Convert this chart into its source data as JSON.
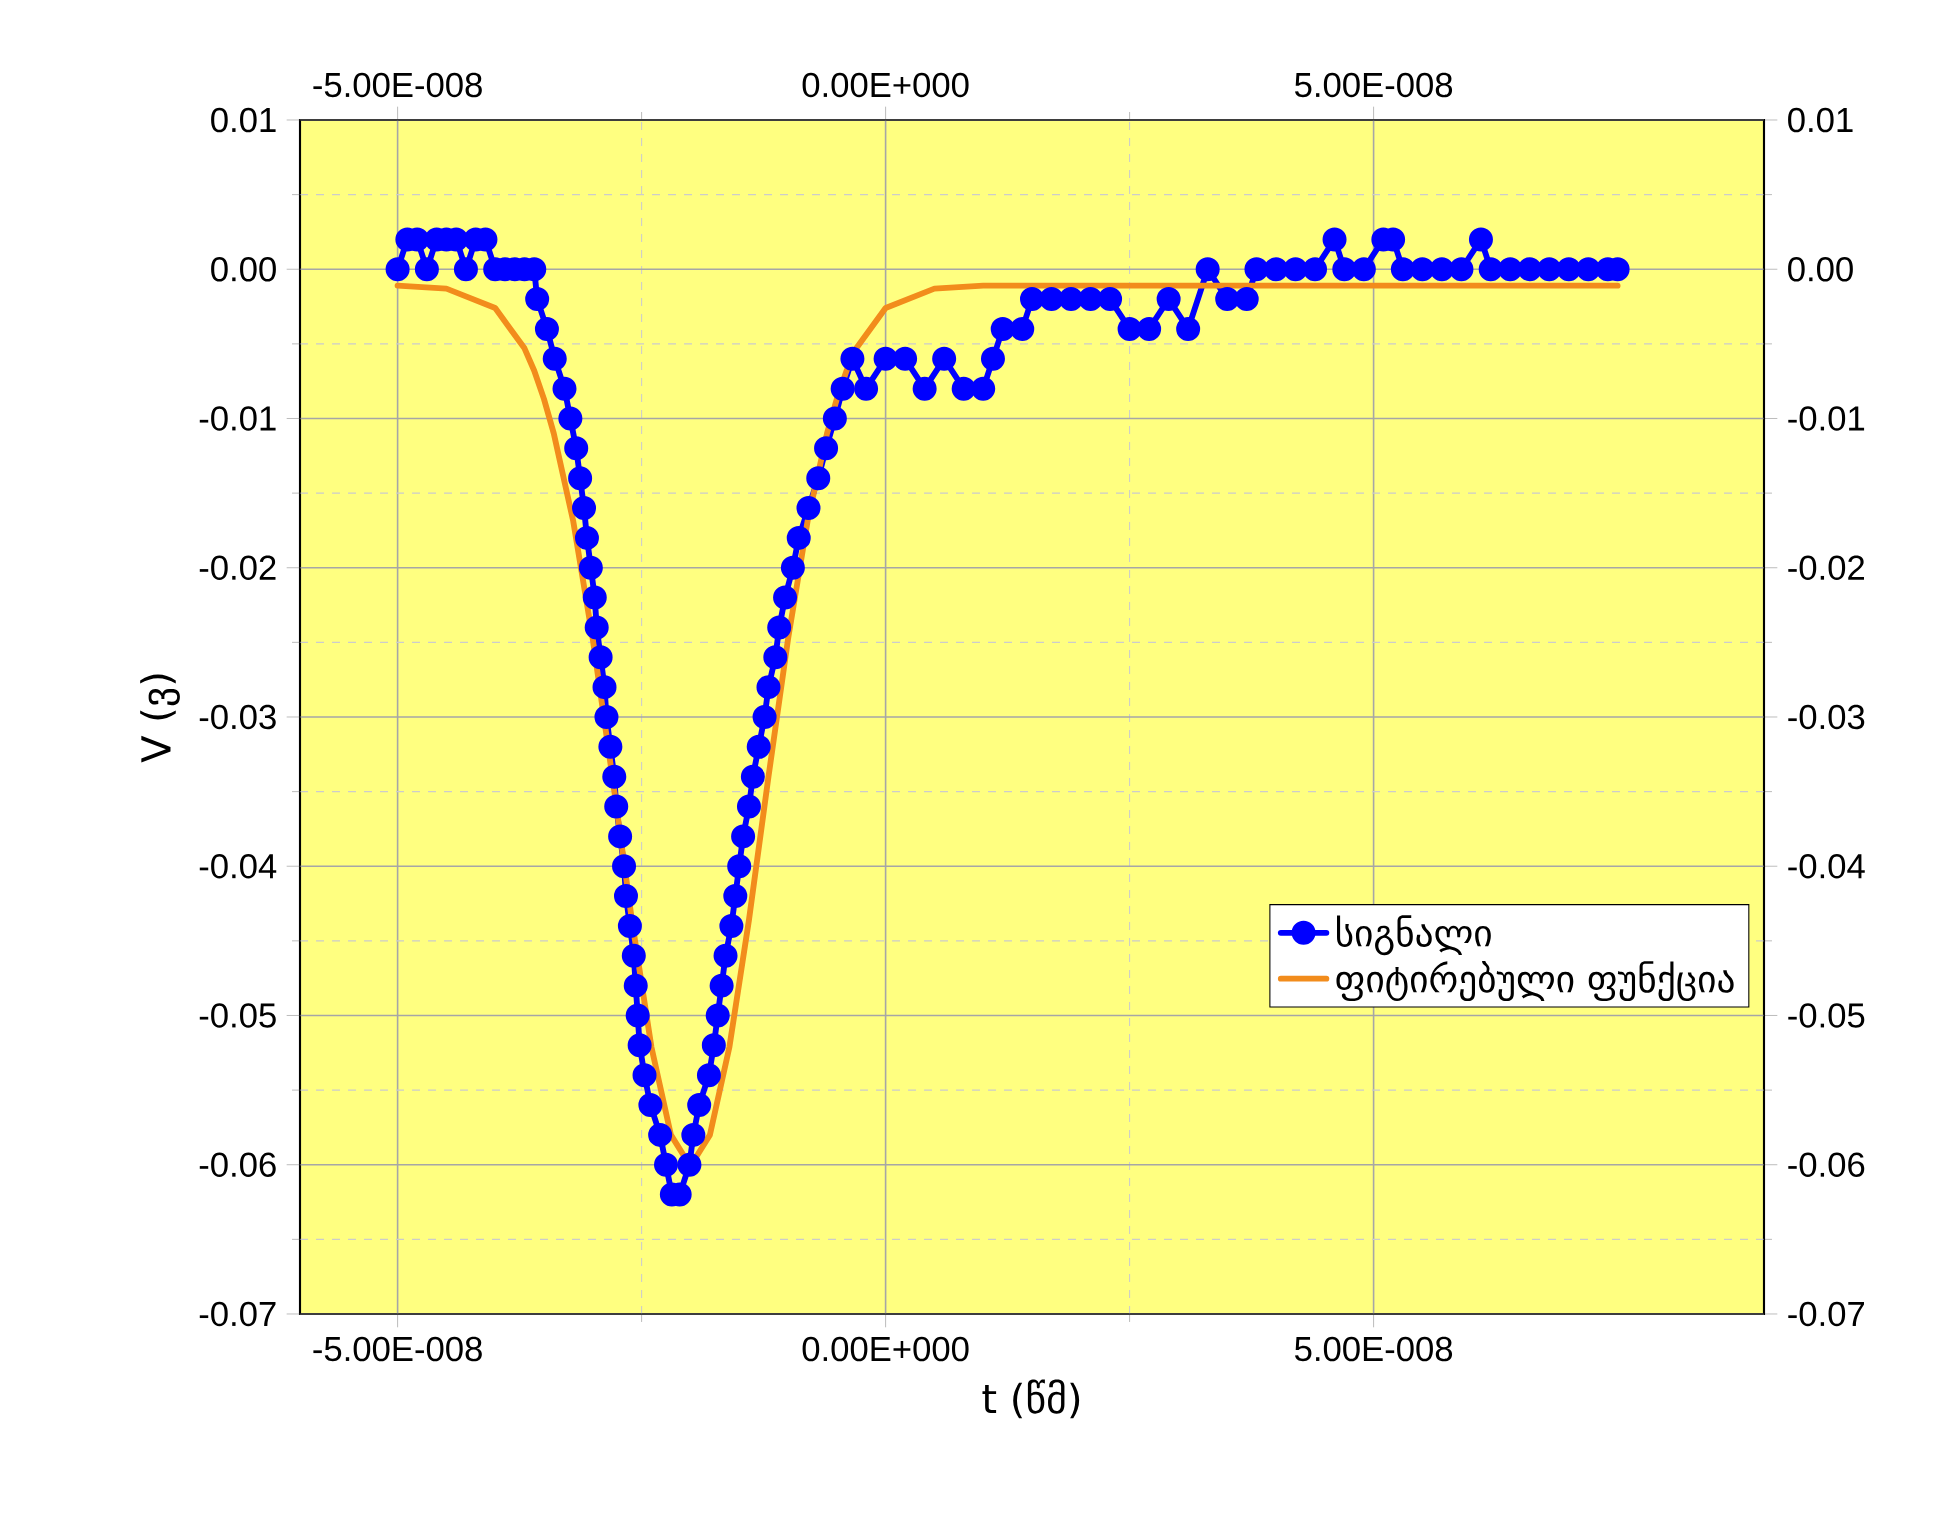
{
  "chart_data": {
    "type": "line",
    "xlabel": "t (წმ)",
    "ylabel": "V (ვ)",
    "xlim": [
      -6e-08,
      9e-08
    ],
    "xticks": [
      {
        "value": -5e-08,
        "label": "-5.00E-008"
      },
      {
        "value": 0,
        "label": "0.00E+000"
      },
      {
        "value": 5e-08,
        "label": "5.00E-008"
      }
    ],
    "x2lim": [
      -6e-08,
      9e-08
    ],
    "x2ticks": [
      {
        "value": -5e-08,
        "label": "-5.00E-008"
      },
      {
        "value": 0,
        "label": "0.00E+000"
      },
      {
        "value": 5e-08,
        "label": "5.00E-008"
      }
    ],
    "ylim": [
      -0.07,
      0.01
    ],
    "yticks": [
      -0.07,
      -0.06,
      -0.05,
      -0.04,
      -0.03,
      -0.02,
      -0.01,
      {
        "value": 0,
        "label": "0.00"
      },
      0.01
    ],
    "y2lim": [
      -0.07,
      0.01
    ],
    "y2ticks": [
      -0.07,
      -0.06,
      -0.05,
      -0.04,
      -0.03,
      -0.02,
      -0.01,
      {
        "value": 0,
        "label": "0.00"
      },
      0.01
    ],
    "grid": true,
    "legend": "right",
    "marker": "circle",
    "series": [
      {
        "name": "სიგნალი",
        "color": "#0000ff",
        "x": [
          -5e-08,
          -4.9e-08,
          -4.8e-08,
          -4.7e-08,
          -4.6e-08,
          -4.5e-08,
          -4.4e-08,
          -4.3e-08,
          -4.2e-08,
          -4.1e-08,
          -4e-08,
          -3.9e-08,
          -3.8e-08,
          -3.7e-08,
          -3.6e-08,
          -3.57e-08,
          -3.47e-08,
          -3.39e-08,
          -3.29e-08,
          -3.23e-08,
          -3.17e-08,
          -3.13e-08,
          -3.09e-08,
          -3.06e-08,
          -3.02e-08,
          -2.98e-08,
          -2.96e-08,
          -2.92e-08,
          -2.88e-08,
          -2.86e-08,
          -2.82e-08,
          -2.78e-08,
          -2.76e-08,
          -2.72e-08,
          -2.68e-08,
          -2.66e-08,
          -2.62e-08,
          -2.58e-08,
          -2.56e-08,
          -2.54e-08,
          -2.52e-08,
          -2.47e-08,
          -2.41e-08,
          -2.31e-08,
          -2.25e-08,
          -2.19e-08,
          -2.11e-08,
          -2.01e-08,
          -1.97e-08,
          -1.91e-08,
          -1.81e-08,
          -1.76e-08,
          -1.72e-08,
          -1.68e-08,
          -1.64e-08,
          -1.58e-08,
          -1.54e-08,
          -1.5e-08,
          -1.46e-08,
          -1.4e-08,
          -1.36e-08,
          -1.3e-08,
          -1.24e-08,
          -1.2e-08,
          -1.13e-08,
          -1.09e-08,
          -1.03e-08,
          -9.5e-09,
          -8.9e-09,
          -7.9e-09,
          -6.9e-09,
          -6.1e-09,
          -5.2e-09,
          -4.4e-09,
          -3.4e-09,
          -2e-09,
          0,
          2e-09,
          4e-09,
          6e-09,
          8e-09,
          1e-08,
          1.1e-08,
          1.2e-08,
          1.4e-08,
          1.5e-08,
          1.7e-08,
          1.9e-08,
          2.1e-08,
          2.3e-08,
          2.5e-08,
          2.7e-08,
          2.9e-08,
          3.1e-08,
          3.3e-08,
          3.5e-08,
          3.7e-08,
          3.8e-08,
          4e-08,
          4.2e-08,
          4.4e-08,
          4.6e-08,
          4.7e-08,
          4.9e-08,
          5.1e-08,
          5.2e-08,
          5.3e-08,
          5.5e-08,
          5.7e-08,
          5.9e-08,
          6.1e-08,
          6.2e-08,
          6.4e-08,
          6.6e-08,
          6.8e-08,
          7e-08,
          7.2e-08,
          7.4e-08,
          7.5e-08
        ],
        "values": [
          0,
          0.002,
          0.002,
          0,
          0.002,
          0.002,
          0.002,
          0,
          0.002,
          0.002,
          0,
          0,
          0,
          0,
          0,
          -0.002,
          -0.004,
          -0.006,
          -0.008,
          -0.01,
          -0.012,
          -0.014,
          -0.016,
          -0.018,
          -0.02,
          -0.022,
          -0.024,
          -0.026,
          -0.028,
          -0.03,
          -0.032,
          -0.034,
          -0.036,
          -0.038,
          -0.04,
          -0.042,
          -0.044,
          -0.046,
          -0.048,
          -0.05,
          -0.052,
          -0.054,
          -0.056,
          -0.058,
          -0.06,
          -0.062,
          -0.062,
          -0.06,
          -0.058,
          -0.056,
          -0.054,
          -0.052,
          -0.05,
          -0.048,
          -0.046,
          -0.044,
          -0.042,
          -0.04,
          -0.038,
          -0.036,
          -0.034,
          -0.032,
          -0.03,
          -0.028,
          -0.026,
          -0.024,
          -0.022,
          -0.02,
          -0.018,
          -0.016,
          -0.014,
          -0.012,
          -0.01,
          -0.008,
          -0.006,
          -0.008,
          -0.006,
          -0.006,
          -0.008,
          -0.006,
          -0.008,
          -0.008,
          -0.006,
          -0.004,
          -0.004,
          -0.002,
          -0.002,
          -0.002,
          -0.002,
          -0.002,
          -0.004,
          -0.004,
          -0.002,
          -0.004,
          0,
          -0.002,
          -0.002,
          0,
          0,
          0,
          0,
          0.002,
          0,
          0,
          0.002,
          0.002,
          0,
          0,
          0,
          0,
          0.002,
          0,
          0,
          0,
          0,
          0,
          0,
          0,
          0
        ]
      },
      {
        "name": "ფიტირებული ფუნქცია",
        "color": "#f28c1c",
        "marker": "none",
        "x": [
          -5e-08,
          -4.5e-08,
          -4e-08,
          -3.7e-08,
          -3.6e-08,
          -3.5e-08,
          -3.4e-08,
          -3.2e-08,
          -3e-08,
          -2.8e-08,
          -2.6e-08,
          -2.4e-08,
          -2.2e-08,
          -2e-08,
          -1.8e-08,
          -1.6e-08,
          -1.4e-08,
          -1.2e-08,
          -1e-08,
          -8e-09,
          -6e-09,
          -5e-09,
          -4e-09,
          -3e-09,
          0,
          5e-09,
          1e-08,
          4e-08,
          7.5e-08
        ],
        "values": [
          -0.0011,
          -0.0013,
          -0.0026,
          -0.0053,
          -0.0068,
          -0.0087,
          -0.011,
          -0.0169,
          -0.0248,
          -0.034,
          -0.0436,
          -0.0521,
          -0.058,
          -0.0601,
          -0.058,
          -0.0521,
          -0.0436,
          -0.034,
          -0.0248,
          -0.0169,
          -0.011,
          -0.0087,
          -0.0068,
          -0.0053,
          -0.0026,
          -0.0013,
          -0.0011,
          -0.0011,
          -0.0011
        ]
      }
    ]
  }
}
